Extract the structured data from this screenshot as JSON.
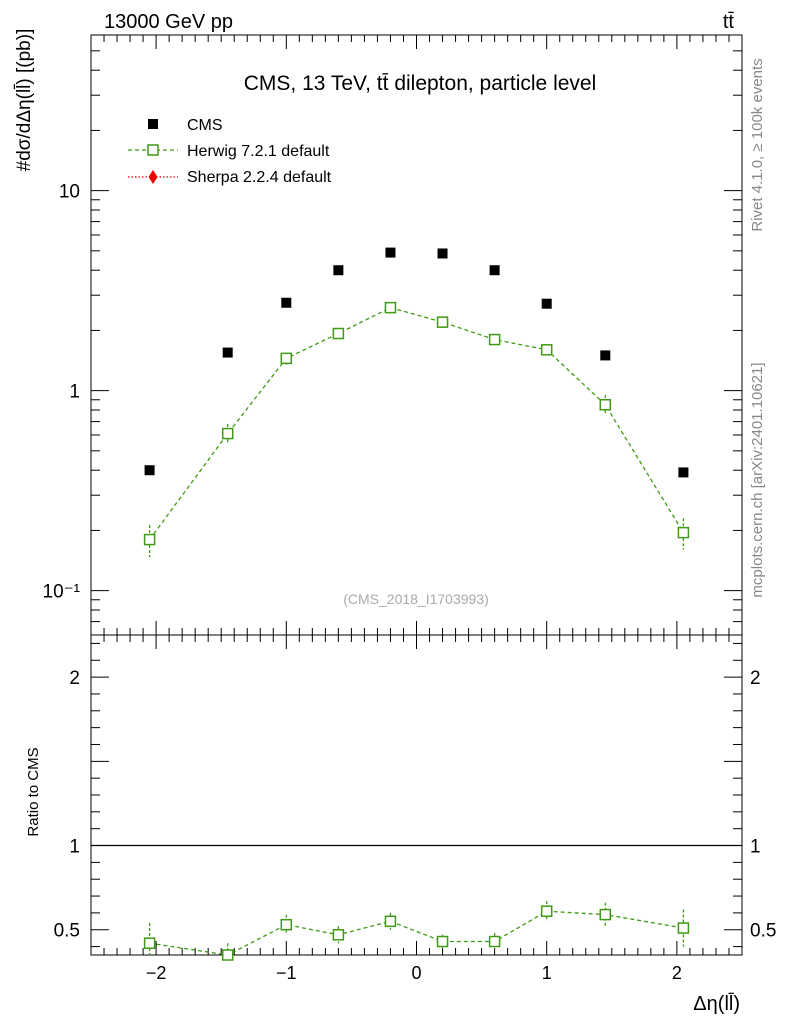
{
  "header": {
    "left_label": "13000 GeV pp",
    "right_label": "tt̄"
  },
  "side_labels": {
    "rivet": "Rivet 4.1.0, ≥ 100k events",
    "source": "mcplots.cern.ch [arXiv:2401.10621]"
  },
  "chart_data": {
    "type": "scatter",
    "title": "CMS, 13 TeV, tt̄ dilepton, particle level",
    "watermark": "(CMS_2018_I1703993)",
    "xlabel": "Δη(ll̄)",
    "ylabel": "#dσ/dΔη(ll̄) [(pb)]",
    "ylabel_ratio": "Ratio to CMS",
    "xlim": [
      -2.5,
      2.5
    ],
    "ylim": [
      0.06,
      60
    ],
    "ylim_ratio": [
      0.35,
      2.25
    ],
    "yscale": "log",
    "x_ticks": [
      "−2",
      "−1",
      "0",
      "1",
      "2"
    ],
    "x_tick_values": [
      -2,
      -1,
      0,
      1,
      2
    ],
    "y_ticks": [
      "10⁻¹",
      "1",
      "10"
    ],
    "y_tick_values": [
      0.1,
      1,
      10
    ],
    "ratio_ticks": [
      "0.5",
      "1",
      "2"
    ],
    "ratio_tick_values": [
      0.5,
      1,
      2
    ],
    "legend": [
      {
        "name": "CMS",
        "marker": "filled-square",
        "color": "#000000"
      },
      {
        "name": "Herwig 7.2.1 default",
        "marker": "open-square",
        "color": "#3f9a16"
      },
      {
        "name": "Sherpa 2.2.4 default",
        "marker": "diamond",
        "color": "#ee0000"
      }
    ],
    "x": [
      -2.05,
      -1.45,
      -1.0,
      -0.6,
      -0.2,
      0.2,
      0.6,
      1.0,
      1.45,
      2.05
    ],
    "series": [
      {
        "name": "CMS",
        "values": [
          0.4,
          1.55,
          2.75,
          4.0,
          4.9,
          4.85,
          4.0,
          2.72,
          1.5,
          0.39
        ]
      },
      {
        "name": "Herwig 7.2.1 default",
        "values": [
          0.18,
          0.61,
          1.45,
          1.93,
          2.6,
          2.2,
          1.8,
          1.6,
          0.85,
          0.195
        ],
        "err_low": [
          0.033,
          0.06,
          0.1,
          0.1,
          0.12,
          0.1,
          0.09,
          0.1,
          0.08,
          0.035
        ],
        "err_high": [
          0.033,
          0.07,
          0.1,
          0.1,
          0.12,
          0.1,
          0.09,
          0.1,
          0.1,
          0.035
        ]
      },
      {
        "name": "Herwig 7.2.1 default / CMS",
        "values": [
          0.42,
          0.35,
          0.53,
          0.47,
          0.55,
          0.43,
          0.43,
          0.61,
          0.59,
          0.51
        ],
        "err_low": [
          0.12,
          0.04,
          0.06,
          0.05,
          0.05,
          0.04,
          0.04,
          0.06,
          0.07,
          0.11
        ],
        "err_high": [
          0.12,
          0.07,
          0.06,
          0.05,
          0.05,
          0.04,
          0.05,
          0.06,
          0.07,
          0.11
        ]
      }
    ]
  }
}
